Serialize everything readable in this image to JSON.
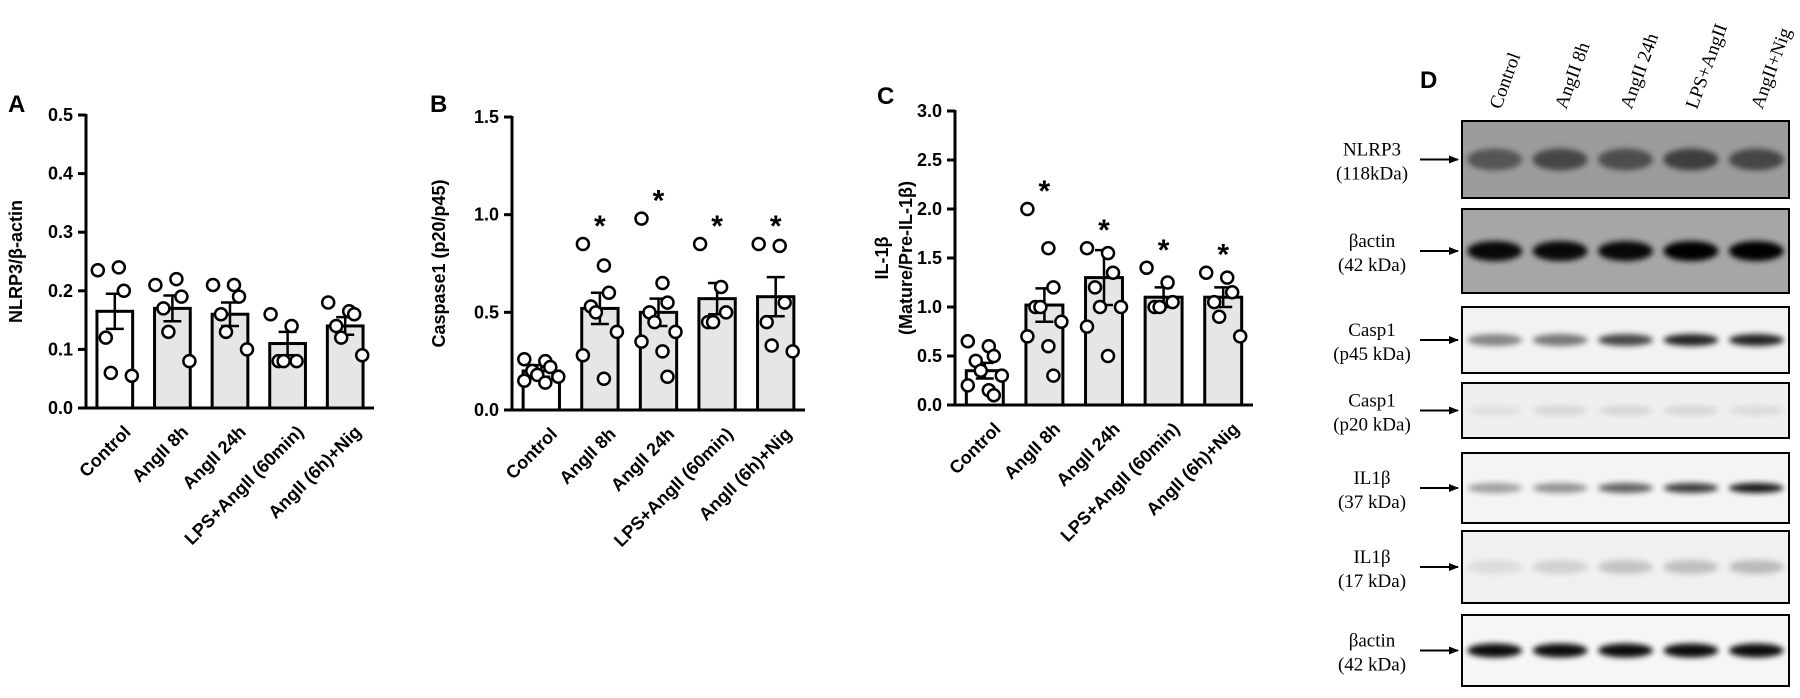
{
  "chart_data": [
    {
      "type": "bar",
      "panel": "A",
      "ylabel": [
        "NLRP3/β-actin"
      ],
      "categories": [
        "Control",
        "AngII 8h",
        "AngII 24h",
        "LPS+AngII (60min)",
        "AngII (6h)+Nig"
      ],
      "values": [
        0.165,
        0.17,
        0.16,
        0.11,
        0.14
      ],
      "errors": [
        0.03,
        0.022,
        0.02,
        0.02,
        0.015
      ],
      "colors": [
        "#ffffff",
        "#e6e6e6",
        "#e6e6e6",
        "#e6e6e6",
        "#e6e6e6"
      ],
      "points": [
        [
          0.235,
          0.24,
          0.2,
          0.12,
          0.06,
          0.055
        ],
        [
          0.21,
          0.22,
          0.19,
          0.17,
          0.13,
          0.08
        ],
        [
          0.21,
          0.21,
          0.19,
          0.16,
          0.13,
          0.1
        ],
        [
          0.16,
          0.14,
          0.08,
          0.08,
          0.08
        ],
        [
          0.18,
          0.165,
          0.16,
          0.14,
          0.12,
          0.09
        ]
      ],
      "ylim": [
        0,
        0.5
      ],
      "yticks": [
        {
          "value": 0,
          "label": "0.0"
        },
        0.1,
        0.2,
        0.3,
        0.4,
        0.5
      ]
    },
    {
      "type": "bar",
      "panel": "B",
      "ylabel": [
        "Caspase1 (p20/p45)"
      ],
      "categories": [
        "Control",
        "AngII 8h",
        "AngII 24h",
        "LPS+AngII (60min)",
        "AngII (6h)+Nig"
      ],
      "values": [
        0.2,
        0.52,
        0.5,
        0.57,
        0.58
      ],
      "errors": [
        0.03,
        0.08,
        0.07,
        0.08,
        0.1
      ],
      "colors": [
        "#ffffff",
        "#e6e6e6",
        "#e6e6e6",
        "#e6e6e6",
        "#e6e6e6"
      ],
      "points": [
        [
          0.26,
          0.25,
          0.22,
          0.2,
          0.18,
          0.17,
          0.15,
          0.14
        ],
        [
          0.85,
          0.74,
          0.6,
          0.53,
          0.5,
          0.4,
          0.28,
          0.16
        ],
        [
          0.98,
          0.65,
          0.55,
          0.5,
          0.45,
          0.4,
          0.35,
          0.3,
          0.17
        ],
        [
          0.85,
          0.63,
          0.5,
          0.45,
          0.45
        ],
        [
          0.85,
          0.84,
          0.55,
          0.45,
          0.33,
          0.3
        ]
      ],
      "annotations": [
        null,
        "*",
        "*",
        "*",
        "*"
      ],
      "ylim": [
        0,
        1.5
      ],
      "yticks": [
        {
          "value": 0,
          "label": "0.0"
        },
        0.5,
        {
          "value": 1,
          "label": "1.0"
        },
        1.5
      ]
    },
    {
      "type": "bar",
      "panel": "C",
      "ylabel": [
        "IL-1β",
        "(Mature/Pre-IL-1β)"
      ],
      "categories": [
        "Control",
        "AngII 8h",
        "AngII 24h",
        "LPS+AngII (60min)",
        "AngII (6h)+Nig"
      ],
      "values": [
        0.35,
        1.02,
        1.3,
        1.1,
        1.1
      ],
      "errors": [
        0.08,
        0.17,
        0.28,
        0.1,
        0.1
      ],
      "colors": [
        "#ffffff",
        "#e6e6e6",
        "#e6e6e6",
        "#e6e6e6",
        "#e6e6e6"
      ],
      "points": [
        [
          0.65,
          0.6,
          0.5,
          0.45,
          0.35,
          0.3,
          0.2,
          0.15,
          0.1
        ],
        [
          2.0,
          1.6,
          1.2,
          1.0,
          1.0,
          0.85,
          0.7,
          0.6,
          0.3
        ],
        [
          1.6,
          1.55,
          1.35,
          1.2,
          1.0,
          1.0,
          0.8,
          0.5
        ],
        [
          1.4,
          1.25,
          1.05,
          1.0,
          1.0
        ],
        [
          1.35,
          1.3,
          1.15,
          1.05,
          0.9,
          0.7
        ]
      ],
      "annotations": [
        null,
        "*",
        "*",
        "*",
        "*"
      ],
      "ylim": [
        0,
        3
      ],
      "yticks": [
        {
          "value": 0,
          "label": "0.0"
        },
        0.5,
        {
          "value": 1,
          "label": "1.0"
        },
        1.5,
        {
          "value": 2,
          "label": "2.0"
        },
        2.5,
        {
          "value": 3,
          "label": "3.0"
        }
      ]
    }
  ],
  "blot": {
    "panel": "D",
    "lanes": [
      "Control",
      "AngII 8h",
      "AngII 24h",
      "LPS+AngII",
      "AngII+Nig"
    ],
    "rows": [
      {
        "name": "NLRP3",
        "size": "(118kDa)"
      },
      {
        "name": "βactin",
        "size": "(42 kDa)"
      },
      {
        "name": "Casp1",
        "size": "(p45 kDa)"
      },
      {
        "name": "Casp1",
        "size": "(p20 kDa)"
      },
      {
        "name": "IL1β",
        "size": "(37 kDa)"
      },
      {
        "name": "IL1β",
        "size": "(17 kDa)"
      },
      {
        "name": "βactin",
        "size": "(42 kDa)"
      }
    ]
  }
}
